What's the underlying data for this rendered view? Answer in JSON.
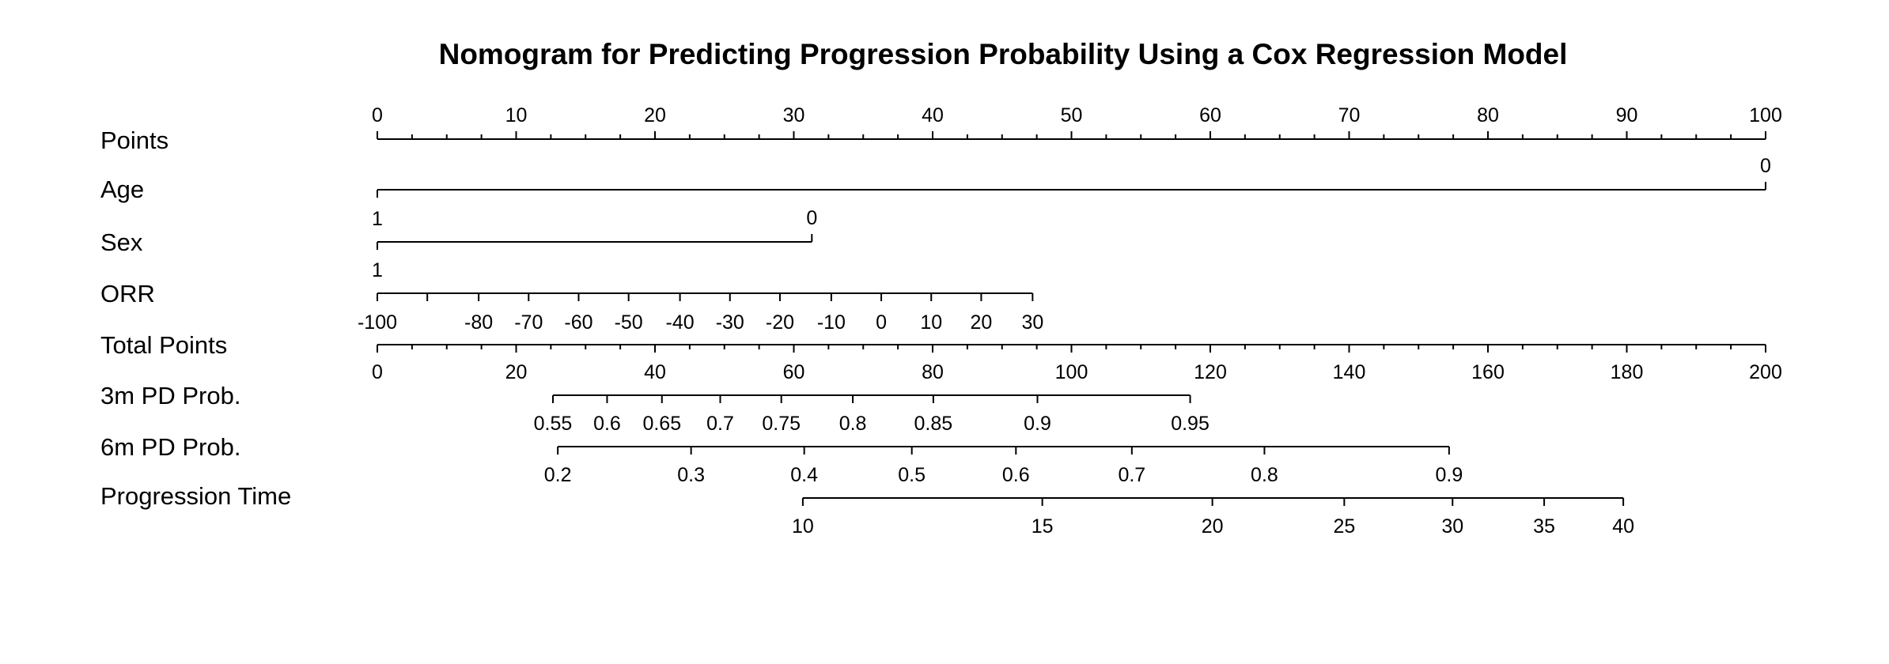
{
  "chart_data": {
    "type": "nomogram",
    "title": "Nomogram for Predicting Progression Probability Using a Cox Regression Model",
    "points_range": [
      0,
      100
    ],
    "rows": [
      {
        "label": "Points",
        "ticks": [
          {
            "value": 0,
            "label": "0"
          },
          {
            "value": 10,
            "label": "10"
          },
          {
            "value": 20,
            "label": "20"
          },
          {
            "value": 30,
            "label": "30"
          },
          {
            "value": 40,
            "label": "40"
          },
          {
            "value": 50,
            "label": "50"
          },
          {
            "value": 60,
            "label": "60"
          },
          {
            "value": 70,
            "label": "70"
          },
          {
            "value": 80,
            "label": "80"
          },
          {
            "value": 90,
            "label": "90"
          },
          {
            "value": 100,
            "label": "100"
          }
        ],
        "minor_step": 2.5
      },
      {
        "label": "Age",
        "ticks": [
          {
            "label": "1",
            "points": 0
          },
          {
            "label": "0",
            "points": 100
          }
        ]
      },
      {
        "label": "Sex",
        "ticks": [
          {
            "label": "1",
            "points": 0
          },
          {
            "label": "0",
            "points": 31.3
          }
        ]
      },
      {
        "label": "ORR",
        "ticks": [
          {
            "label": "-100",
            "points": 0
          },
          {
            "label": "",
            "points": 3.6
          },
          {
            "label": "-80",
            "points": 7.3
          },
          {
            "label": "-70",
            "points": 10.9
          },
          {
            "label": "-60",
            "points": 14.5
          },
          {
            "label": "-50",
            "points": 18.1
          },
          {
            "label": "-40",
            "points": 21.8
          },
          {
            "label": "-30",
            "points": 25.4
          },
          {
            "label": "-20",
            "points": 29.0
          },
          {
            "label": "-10",
            "points": 32.7
          },
          {
            "label": "0",
            "points": 36.3
          },
          {
            "label": "10",
            "points": 39.9
          },
          {
            "label": "20",
            "points": 43.5
          },
          {
            "label": "30",
            "points": 47.2
          }
        ]
      },
      {
        "label": "Total Points",
        "range": [
          0,
          200
        ],
        "ticks": [
          {
            "value": 0,
            "label": "0"
          },
          {
            "value": 20,
            "label": "20"
          },
          {
            "value": 40,
            "label": "40"
          },
          {
            "value": 60,
            "label": "60"
          },
          {
            "value": 80,
            "label": "80"
          },
          {
            "value": 100,
            "label": "100"
          },
          {
            "value": 120,
            "label": "120"
          },
          {
            "value": 140,
            "label": "140"
          },
          {
            "value": 160,
            "label": "160"
          },
          {
            "value": 180,
            "label": "180"
          },
          {
            "value": 200,
            "label": "200"
          }
        ],
        "minor_step": 5
      },
      {
        "label": "3m PD Prob.",
        "ticks": [
          {
            "label": "0.55",
            "total": 25.3
          },
          {
            "label": "0.6",
            "total": 33.1
          },
          {
            "label": "0.65",
            "total": 41.0
          },
          {
            "label": "0.7",
            "total": 49.4
          },
          {
            "label": "0.75",
            "total": 58.2
          },
          {
            "label": "0.8",
            "total": 68.5
          },
          {
            "label": "0.85",
            "total": 80.1
          },
          {
            "label": "0.9",
            "total": 95.1
          },
          {
            "label": "0.95",
            "total": 117.1
          }
        ]
      },
      {
        "label": "6m PD Prob.",
        "ticks": [
          {
            "label": "0.2",
            "total": 26.0
          },
          {
            "label": "0.3",
            "total": 45.2
          },
          {
            "label": "0.4",
            "total": 61.5
          },
          {
            "label": "0.5",
            "total": 77.0
          },
          {
            "label": "0.6",
            "total": 92.0
          },
          {
            "label": "0.7",
            "total": 108.7
          },
          {
            "label": "0.8",
            "total": 127.8
          },
          {
            "label": "0.9",
            "total": 154.4
          }
        ]
      },
      {
        "label": "Progression Time",
        "ticks": [
          {
            "label": "10",
            "total": 61.3
          },
          {
            "label": "15",
            "total": 95.8
          },
          {
            "label": "20",
            "total": 120.3
          },
          {
            "label": "25",
            "total": 139.3
          },
          {
            "label": "30",
            "total": 154.9
          },
          {
            "label": "35",
            "total": 168.1
          },
          {
            "label": "40",
            "total": 179.5
          }
        ]
      }
    ]
  }
}
